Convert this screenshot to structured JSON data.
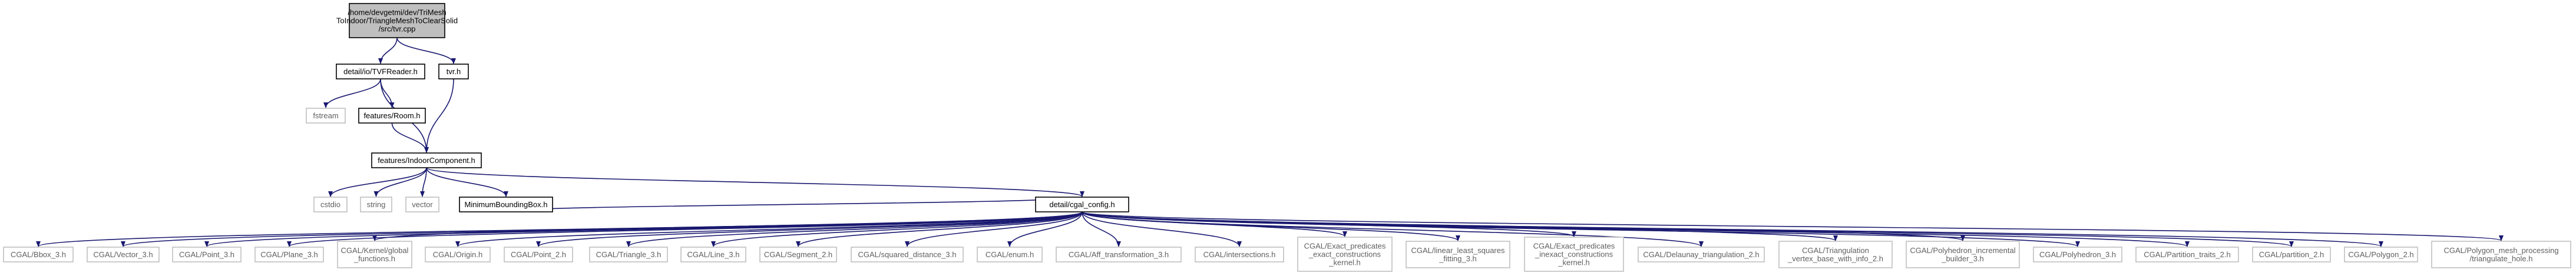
{
  "colors": {
    "edge": "#191970",
    "box_stroke": "#000000",
    "root_fill": "#bfbfbf",
    "box_fill": "#ffffff",
    "external_stroke": "#bfbfbf",
    "external_text": "#606060"
  },
  "nodes": {
    "root": [
      "/home/devgetmi/dev/TriMesh",
      "ToIndoor/TriangleMeshToClearSolid",
      "/src/tvr.cpp"
    ],
    "tvfreader": [
      "detail/io/TVFReader.h"
    ],
    "tvrh": [
      "tvr.h"
    ],
    "fstream": [
      "fstream"
    ],
    "room": [
      "features/Room.h"
    ],
    "indoorcomp": [
      "features/IndoorComponent.h"
    ],
    "cstdio": [
      "cstdio"
    ],
    "string": [
      "string"
    ],
    "vector": [
      "vector"
    ],
    "minbbox": [
      "MinimumBoundingBox.h"
    ],
    "cgalconfig": [
      "detail/cgal_config.h"
    ],
    "l_bbox": [
      "CGAL/Bbox_3.h"
    ],
    "l_vector": [
      "CGAL/Vector_3.h"
    ],
    "l_point3": [
      "CGAL/Point_3.h"
    ],
    "l_plane": [
      "CGAL/Plane_3.h"
    ],
    "l_kernel": [
      "CGAL/Kernel/global",
      "_functions.h"
    ],
    "l_origin": [
      "CGAL/Origin.h"
    ],
    "l_point2": [
      "CGAL/Point_2.h"
    ],
    "l_triangle": [
      "CGAL/Triangle_3.h"
    ],
    "l_line": [
      "CGAL/Line_3.h"
    ],
    "l_segment": [
      "CGAL/Segment_2.h"
    ],
    "l_sqdist": [
      "CGAL/squared_distance_3.h"
    ],
    "l_enum": [
      "CGAL/enum.h"
    ],
    "l_afftrans": [
      "CGAL/Aff_transformation_3.h"
    ],
    "l_intersect": [
      "CGAL/intersections.h"
    ],
    "l_epec": [
      "CGAL/Exact_predicates",
      "_exact_constructions",
      "_kernel.h"
    ],
    "l_lsq": [
      "CGAL/linear_least_squares",
      "_fitting_3.h"
    ],
    "l_epic": [
      "CGAL/Exact_predicates",
      "_inexact_constructions",
      "_kernel.h"
    ],
    "l_delaunay": [
      "CGAL/Delaunay_triangulation_2.h"
    ],
    "l_trivb": [
      "CGAL/Triangulation",
      "_vertex_base_with_info_2.h"
    ],
    "l_polyinc": [
      "CGAL/Polyhedron_incremental",
      "_builder_3.h"
    ],
    "l_poly3": [
      "CGAL/Polyhedron_3.h"
    ],
    "l_parttraits": [
      "CGAL/Partition_traits_2.h"
    ],
    "l_partition": [
      "CGAL/partition_2.h"
    ],
    "l_polygon": [
      "CGAL/Polygon_2.h"
    ],
    "l_pmp": [
      "CGAL/Polygon_mesh_processing",
      "/triangulate_hole.h"
    ]
  }
}
